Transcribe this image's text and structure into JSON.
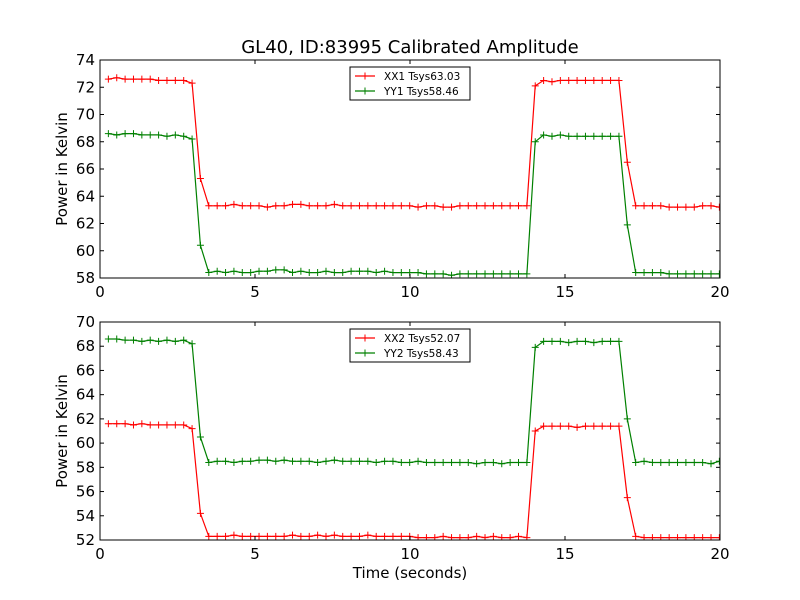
{
  "figure": {
    "title": "GL40, ID:83995 Calibrated Amplitude"
  },
  "chart_data": [
    {
      "type": "line",
      "title": "GL40, ID:83995 Calibrated Amplitude",
      "xlabel": "",
      "ylabel": "Power in Kelvin",
      "xlim": [
        0,
        20
      ],
      "ylim": [
        58,
        74
      ],
      "xticks": [
        0,
        5,
        10,
        15,
        20
      ],
      "yticks": [
        58,
        60,
        62,
        64,
        66,
        68,
        70,
        72,
        74
      ],
      "grid": false,
      "legend_position": "top-center",
      "x": [
        0.27,
        0.54,
        0.81,
        1.08,
        1.35,
        1.62,
        1.89,
        2.16,
        2.43,
        2.7,
        2.97,
        3.24,
        3.51,
        3.78,
        4.05,
        4.32,
        4.59,
        4.86,
        5.13,
        5.4,
        5.67,
        5.94,
        6.21,
        6.48,
        6.75,
        7.02,
        7.29,
        7.56,
        7.83,
        8.1,
        8.37,
        8.64,
        8.91,
        9.18,
        9.45,
        9.72,
        9.99,
        10.26,
        10.53,
        10.8,
        11.07,
        11.34,
        11.61,
        11.88,
        12.15,
        12.42,
        12.69,
        12.96,
        13.23,
        13.5,
        13.77,
        14.04,
        14.31,
        14.58,
        14.85,
        15.12,
        15.39,
        15.66,
        15.93,
        16.2,
        16.47,
        16.74,
        17.01,
        17.28,
        17.55,
        17.82,
        18.09,
        18.36,
        18.63,
        18.9,
        19.17,
        19.44,
        19.71,
        19.98
      ],
      "series": [
        {
          "name": "XX1 Tsys63.03",
          "color": "#ff0000",
          "values": [
            72.6,
            72.7,
            72.6,
            72.6,
            72.6,
            72.6,
            72.5,
            72.5,
            72.5,
            72.5,
            72.3,
            65.3,
            63.3,
            63.3,
            63.3,
            63.4,
            63.3,
            63.3,
            63.3,
            63.2,
            63.3,
            63.3,
            63.4,
            63.4,
            63.3,
            63.3,
            63.3,
            63.4,
            63.3,
            63.3,
            63.3,
            63.3,
            63.3,
            63.3,
            63.3,
            63.3,
            63.3,
            63.2,
            63.3,
            63.3,
            63.2,
            63.2,
            63.3,
            63.3,
            63.3,
            63.3,
            63.3,
            63.3,
            63.3,
            63.3,
            63.3,
            72.1,
            72.5,
            72.4,
            72.5,
            72.5,
            72.5,
            72.5,
            72.5,
            72.5,
            72.5,
            72.5,
            66.5,
            63.3,
            63.3,
            63.3,
            63.3,
            63.2,
            63.2,
            63.2,
            63.2,
            63.3,
            63.3,
            63.2
          ],
          "x_offset": [
            0,
            0,
            0,
            0,
            0,
            0,
            0,
            0,
            0,
            0,
            0,
            0,
            0,
            0,
            0,
            0,
            0,
            0,
            0,
            0,
            0,
            0,
            0,
            0,
            0,
            0,
            0,
            0,
            0,
            0,
            0,
            0,
            0,
            0,
            0,
            0,
            0,
            0,
            0,
            0,
            0,
            0,
            0,
            0,
            0,
            0,
            0,
            0,
            0,
            0,
            0,
            0,
            0,
            0,
            0,
            0,
            0,
            0,
            0,
            0,
            0,
            0,
            0,
            0,
            0,
            0,
            0,
            0,
            0,
            0,
            0,
            0,
            0,
            0
          ]
        },
        {
          "name": "YY1 Tsys58.46",
          "color": "#008000",
          "values": [
            68.6,
            68.5,
            68.6,
            68.6,
            68.5,
            68.5,
            68.5,
            68.4,
            68.5,
            68.4,
            68.2,
            60.4,
            58.4,
            58.5,
            58.4,
            58.5,
            58.4,
            58.4,
            58.5,
            58.5,
            58.6,
            58.6,
            58.4,
            58.5,
            58.4,
            58.4,
            58.5,
            58.4,
            58.4,
            58.5,
            58.5,
            58.5,
            58.4,
            58.5,
            58.4,
            58.4,
            58.4,
            58.4,
            58.3,
            58.3,
            58.3,
            58.2,
            58.3,
            58.3,
            58.3,
            58.3,
            58.3,
            58.3,
            58.3,
            58.3,
            58.3,
            68.0,
            68.5,
            68.4,
            68.5,
            68.4,
            68.4,
            68.4,
            68.4,
            68.4,
            68.4,
            68.4,
            61.9,
            58.4,
            58.4,
            58.4,
            58.4,
            58.3,
            58.3,
            58.3,
            58.3,
            58.3,
            58.3,
            58.3
          ]
        }
      ]
    },
    {
      "type": "line",
      "title": "",
      "xlabel": "Time (seconds)",
      "ylabel": "Power in Kelvin",
      "xlim": [
        0,
        20
      ],
      "ylim": [
        52,
        70
      ],
      "xticks": [
        0,
        5,
        10,
        15,
        20
      ],
      "yticks": [
        52,
        54,
        56,
        58,
        60,
        62,
        64,
        66,
        68,
        70
      ],
      "grid": false,
      "legend_position": "top-center",
      "x": [
        0.27,
        0.54,
        0.81,
        1.08,
        1.35,
        1.62,
        1.89,
        2.16,
        2.43,
        2.7,
        2.97,
        3.24,
        3.51,
        3.78,
        4.05,
        4.32,
        4.59,
        4.86,
        5.13,
        5.4,
        5.67,
        5.94,
        6.21,
        6.48,
        6.75,
        7.02,
        7.29,
        7.56,
        7.83,
        8.1,
        8.37,
        8.64,
        8.91,
        9.18,
        9.45,
        9.72,
        9.99,
        10.26,
        10.53,
        10.8,
        11.07,
        11.34,
        11.61,
        11.88,
        12.15,
        12.42,
        12.69,
        12.96,
        13.23,
        13.5,
        13.77,
        14.04,
        14.31,
        14.58,
        14.85,
        15.12,
        15.39,
        15.66,
        15.93,
        16.2,
        16.47,
        16.74,
        17.01,
        17.28,
        17.55,
        17.82,
        18.09,
        18.36,
        18.63,
        18.9,
        19.17,
        19.44,
        19.71,
        19.98
      ],
      "series": [
        {
          "name": "XX2 Tsys52.07",
          "color": "#ff0000",
          "values": [
            61.6,
            61.6,
            61.6,
            61.5,
            61.6,
            61.5,
            61.5,
            61.5,
            61.5,
            61.5,
            61.2,
            54.2,
            52.3,
            52.3,
            52.3,
            52.4,
            52.3,
            52.3,
            52.3,
            52.3,
            52.3,
            52.3,
            52.4,
            52.3,
            52.3,
            52.4,
            52.3,
            52.4,
            52.3,
            52.3,
            52.3,
            52.4,
            52.3,
            52.3,
            52.3,
            52.3,
            52.3,
            52.2,
            52.2,
            52.2,
            52.3,
            52.2,
            52.2,
            52.2,
            52.3,
            52.2,
            52.3,
            52.2,
            52.2,
            52.3,
            52.2,
            61.0,
            61.4,
            61.4,
            61.4,
            61.4,
            61.3,
            61.4,
            61.4,
            61.4,
            61.4,
            61.4,
            55.5,
            52.3,
            52.2,
            52.2,
            52.2,
            52.2,
            52.2,
            52.2,
            52.2,
            52.2,
            52.2,
            52.2
          ]
        },
        {
          "name": "YY2 Tsys58.43",
          "color": "#008000",
          "values": [
            68.6,
            68.6,
            68.5,
            68.5,
            68.4,
            68.5,
            68.4,
            68.5,
            68.4,
            68.5,
            68.2,
            60.5,
            58.4,
            58.5,
            58.5,
            58.4,
            58.5,
            58.5,
            58.6,
            58.6,
            58.5,
            58.6,
            58.5,
            58.5,
            58.5,
            58.4,
            58.5,
            58.6,
            58.5,
            58.5,
            58.5,
            58.5,
            58.4,
            58.5,
            58.5,
            58.4,
            58.4,
            58.5,
            58.4,
            58.4,
            58.4,
            58.4,
            58.4,
            58.4,
            58.3,
            58.4,
            58.4,
            58.3,
            58.4,
            58.4,
            58.4,
            67.9,
            68.4,
            68.4,
            68.4,
            68.3,
            68.4,
            68.4,
            68.3,
            68.4,
            68.4,
            68.4,
            62.0,
            58.4,
            58.5,
            58.4,
            58.4,
            58.4,
            58.4,
            58.4,
            58.4,
            58.4,
            58.3,
            58.5
          ]
        }
      ]
    }
  ]
}
